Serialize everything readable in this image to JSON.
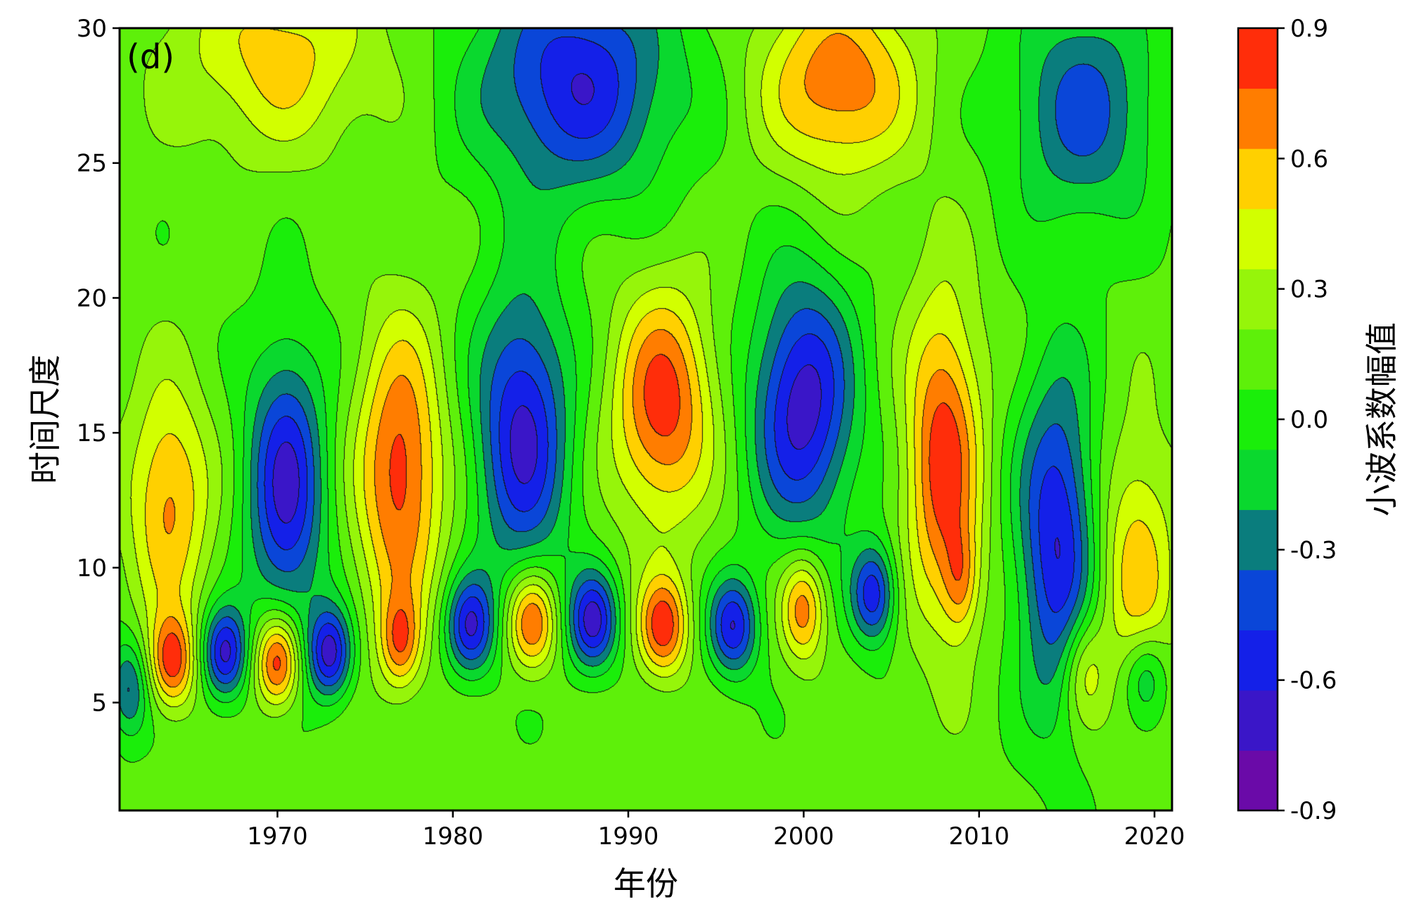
{
  "chart_data": {
    "type": "heatmap",
    "subtype": "filled-contour",
    "panel_label": "(d)",
    "xlabel": "年份",
    "ylabel": "时间尺度",
    "colorbar_label": "小波系数幅值",
    "xlim": [
      1961,
      2021
    ],
    "ylim": [
      1,
      30
    ],
    "x_ticks": [
      {
        "value": 1970,
        "label": "1970"
      },
      {
        "value": 1980,
        "label": "1980"
      },
      {
        "value": 1990,
        "label": "1990"
      },
      {
        "value": 2000,
        "label": "2000"
      },
      {
        "value": 2010,
        "label": "2010"
      },
      {
        "value": 2020,
        "label": "2020"
      }
    ],
    "y_ticks": [
      {
        "value": 5,
        "label": "5"
      },
      {
        "value": 10,
        "label": "10"
      },
      {
        "value": 15,
        "label": "15"
      },
      {
        "value": 20,
        "label": "20"
      },
      {
        "value": 25,
        "label": "25"
      },
      {
        "value": 30,
        "label": "30"
      }
    ],
    "levels": [
      -0.9,
      -0.75,
      -0.6,
      -0.45,
      -0.3,
      -0.15,
      0.0,
      0.15,
      0.3,
      0.45,
      0.6,
      0.75,
      0.9
    ],
    "level_colors": [
      "#6a0aa8",
      "#3a16c8",
      "#1420e8",
      "#0a46d8",
      "#0a7d7d",
      "#0ad82e",
      "#1aee0a",
      "#5ef00a",
      "#96f50a",
      "#d2ff00",
      "#ffd000",
      "#ff7d00",
      "#ff2d0a"
    ],
    "colorbar_ticks": [
      {
        "value": 0.9,
        "label": "0.9"
      },
      {
        "value": 0.6,
        "label": "0.6"
      },
      {
        "value": 0.3,
        "label": "0.3"
      },
      {
        "value": 0.0,
        "label": "0.0"
      },
      {
        "value": -0.3,
        "label": "-0.3"
      },
      {
        "value": -0.6,
        "label": "-0.6"
      },
      {
        "value": -0.9,
        "label": "-0.9"
      }
    ],
    "features": [
      {
        "x": 1963.8,
        "y": 12.5,
        "value": 0.55,
        "sx": 1.6,
        "sy": 3.0
      },
      {
        "x": 1970.5,
        "y": 13.0,
        "value": -0.78,
        "sx": 1.6,
        "sy": 3.6
      },
      {
        "x": 1977.0,
        "y": 13.5,
        "value": 0.72,
        "sx": 1.7,
        "sy": 3.8
      },
      {
        "x": 1984.0,
        "y": 15.0,
        "value": -0.78,
        "sx": 1.9,
        "sy": 3.8
      },
      {
        "x": 1992.0,
        "y": 16.0,
        "value": 0.72,
        "sx": 2.0,
        "sy": 3.0
      },
      {
        "x": 2000.0,
        "y": 16.0,
        "value": -0.82,
        "sx": 2.1,
        "sy": 3.4
      },
      {
        "x": 2008.0,
        "y": 14.0,
        "value": 0.74,
        "sx": 1.5,
        "sy": 4.2
      },
      {
        "x": 2009.0,
        "y": 9.5,
        "value": 0.35,
        "sx": 0.7,
        "sy": 1.4
      },
      {
        "x": 2014.5,
        "y": 11.0,
        "value": -0.75,
        "sx": 1.6,
        "sy": 4.5
      },
      {
        "x": 2019.0,
        "y": 10.0,
        "value": 0.45,
        "sx": 1.6,
        "sy": 3.5
      },
      {
        "x": 1961.5,
        "y": 5.5,
        "value": -0.5,
        "sx": 0.8,
        "sy": 1.3
      },
      {
        "x": 1964.0,
        "y": 6.5,
        "value": 0.7,
        "sx": 0.9,
        "sy": 1.2
      },
      {
        "x": 1967.0,
        "y": 6.8,
        "value": -0.78,
        "sx": 0.9,
        "sy": 1.2
      },
      {
        "x": 1970.0,
        "y": 6.5,
        "value": 0.82,
        "sx": 0.9,
        "sy": 1.2
      },
      {
        "x": 1973.0,
        "y": 6.8,
        "value": -0.78,
        "sx": 0.9,
        "sy": 1.2
      },
      {
        "x": 1977.0,
        "y": 7.2,
        "value": 0.5,
        "sx": 0.8,
        "sy": 1.2
      },
      {
        "x": 1981.0,
        "y": 7.8,
        "value": -0.72,
        "sx": 1.0,
        "sy": 1.3
      },
      {
        "x": 1984.5,
        "y": 8.0,
        "value": 0.72,
        "sx": 1.0,
        "sy": 1.3
      },
      {
        "x": 1988.0,
        "y": 8.0,
        "value": -0.78,
        "sx": 1.0,
        "sy": 1.3
      },
      {
        "x": 1992.0,
        "y": 7.8,
        "value": 0.72,
        "sx": 1.0,
        "sy": 1.3
      },
      {
        "x": 1996.0,
        "y": 7.8,
        "value": -0.72,
        "sx": 1.0,
        "sy": 1.3
      },
      {
        "x": 2000.0,
        "y": 8.5,
        "value": 0.62,
        "sx": 0.9,
        "sy": 1.4
      },
      {
        "x": 2004.0,
        "y": 9.0,
        "value": -0.7,
        "sx": 0.9,
        "sy": 1.3
      },
      {
        "x": 2016.0,
        "y": 6.2,
        "value": 0.4,
        "sx": 0.9,
        "sy": 1.5
      },
      {
        "x": 2019.5,
        "y": 6.0,
        "value": -0.4,
        "sx": 0.9,
        "sy": 1.2
      },
      {
        "x": 1970.0,
        "y": 29.0,
        "value": 0.42,
        "sx": 4.0,
        "sy": 2.5
      },
      {
        "x": 1987.0,
        "y": 28.0,
        "value": -0.72,
        "sx": 4.0,
        "sy": 3.0
      },
      {
        "x": 2002.0,
        "y": 28.0,
        "value": 0.62,
        "sx": 3.0,
        "sy": 2.5
      },
      {
        "x": 2016.0,
        "y": 27.0,
        "value": -0.52,
        "sx": 3.0,
        "sy": 3.0
      }
    ]
  }
}
